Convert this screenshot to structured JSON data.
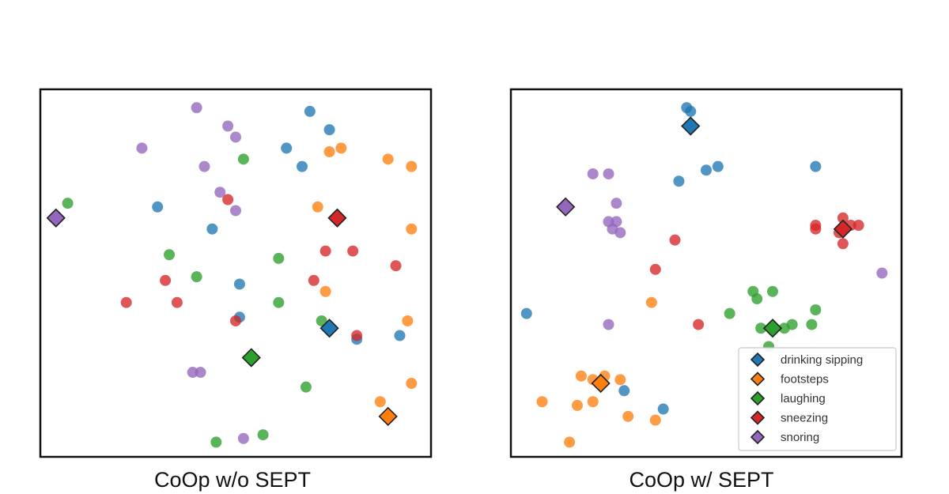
{
  "chart_data": [
    {
      "type": "scatter",
      "caption": "CoOp w/o SEPT",
      "xlim": [
        0,
        100
      ],
      "ylim": [
        0,
        100
      ],
      "grid": false,
      "series": [
        {
          "name": "drinking sipping",
          "color": "#1f77b4",
          "points": [
            [
              69,
              94
            ],
            [
              74,
              89
            ],
            [
              63,
              84
            ],
            [
              67,
              79
            ],
            [
              30,
              68
            ],
            [
              44,
              62
            ],
            [
              51,
              47
            ],
            [
              51,
              38
            ],
            [
              81,
              32
            ],
            [
              92,
              33
            ]
          ],
          "prototype": [
            74,
            35
          ]
        },
        {
          "name": "footsteps",
          "color": "#ff7f0e",
          "points": [
            [
              74,
              83
            ],
            [
              77,
              84
            ],
            [
              89,
              81
            ],
            [
              95,
              79
            ],
            [
              71,
              68
            ],
            [
              95,
              62
            ],
            [
              73,
              45
            ],
            [
              94,
              37
            ],
            [
              95,
              20
            ],
            [
              87,
              15
            ]
          ],
          "prototype": [
            89,
            11
          ]
        },
        {
          "name": "laughing",
          "color": "#2ca02c",
          "points": [
            [
              52,
              81
            ],
            [
              7,
              69
            ],
            [
              33,
              55
            ],
            [
              61,
              54
            ],
            [
              40,
              49
            ],
            [
              61,
              42
            ],
            [
              72,
              37
            ],
            [
              68,
              19
            ],
            [
              57,
              6
            ],
            [
              45,
              4
            ]
          ],
          "prototype": [
            54,
            27
          ]
        },
        {
          "name": "sneezing",
          "color": "#d62728",
          "points": [
            [
              48,
              70
            ],
            [
              73,
              56
            ],
            [
              80,
              56
            ],
            [
              91,
              52
            ],
            [
              32,
              48
            ],
            [
              70,
              48
            ],
            [
              35,
              42
            ],
            [
              22,
              42
            ],
            [
              50,
              37
            ],
            [
              81,
              33
            ]
          ],
          "prototype": [
            76,
            65
          ]
        },
        {
          "name": "snoring",
          "color": "#9467bd",
          "points": [
            [
              40,
              95
            ],
            [
              48,
              90
            ],
            [
              50,
              87
            ],
            [
              26,
              84
            ],
            [
              42,
              79
            ],
            [
              46,
              72
            ],
            [
              50,
              67
            ],
            [
              39,
              23
            ],
            [
              41,
              23
            ],
            [
              52,
              5
            ]
          ],
          "prototype": [
            4,
            65
          ]
        }
      ]
    },
    {
      "type": "scatter",
      "caption": "CoOp w/ SEPT",
      "xlim": [
        0,
        100
      ],
      "ylim": [
        0,
        100
      ],
      "grid": false,
      "series": [
        {
          "name": "drinking sipping",
          "color": "#1f77b4",
          "points": [
            [
              45,
              95
            ],
            [
              46,
              94
            ],
            [
              53,
              79
            ],
            [
              50,
              78
            ],
            [
              43,
              75
            ],
            [
              78,
              79
            ],
            [
              4,
              39
            ],
            [
              29,
              18
            ],
            [
              39,
              13
            ]
          ],
          "prototype": [
            46,
            90
          ]
        },
        {
          "name": "footsteps",
          "color": "#ff7f0e",
          "points": [
            [
              36,
              42
            ],
            [
              24,
              22
            ],
            [
              21,
              21
            ],
            [
              18,
              22
            ],
            [
              28,
              21
            ],
            [
              8,
              15
            ],
            [
              17,
              14
            ],
            [
              21,
              15
            ],
            [
              30,
              11
            ],
            [
              37,
              10
            ],
            [
              15,
              4
            ]
          ],
          "prototype": [
            23,
            20
          ]
        },
        {
          "name": "laughing",
          "color": "#2ca02c",
          "points": [
            [
              62,
              45
            ],
            [
              63,
              43
            ],
            [
              67,
              45
            ],
            [
              56,
              39
            ],
            [
              78,
              40
            ],
            [
              64,
              35
            ],
            [
              70,
              35
            ],
            [
              72,
              36
            ],
            [
              77,
              36
            ],
            [
              66,
              30
            ]
          ],
          "prototype": [
            67,
            35
          ]
        },
        {
          "name": "sneezing",
          "color": "#d62728",
          "points": [
            [
              85,
              65
            ],
            [
              87,
              63
            ],
            [
              89,
              63
            ],
            [
              78,
              63
            ],
            [
              78,
              62
            ],
            [
              84,
              61
            ],
            [
              85,
              58
            ],
            [
              42,
              59
            ],
            [
              37,
              51
            ],
            [
              48,
              36
            ]
          ],
          "prototype": [
            85,
            62
          ]
        },
        {
          "name": "snoring",
          "color": "#9467bd",
          "points": [
            [
              21,
              77
            ],
            [
              25,
              77
            ],
            [
              27,
              69
            ],
            [
              25,
              64
            ],
            [
              27,
              64
            ],
            [
              26,
              62
            ],
            [
              28,
              61
            ],
            [
              95,
              50
            ],
            [
              25,
              36
            ]
          ],
          "prototype": [
            14,
            68
          ]
        }
      ],
      "legend": {
        "placement": "lower-right",
        "entries": [
          "drinking sipping",
          "footsteps",
          "laughing",
          "sneezing",
          "snoring"
        ]
      }
    }
  ]
}
